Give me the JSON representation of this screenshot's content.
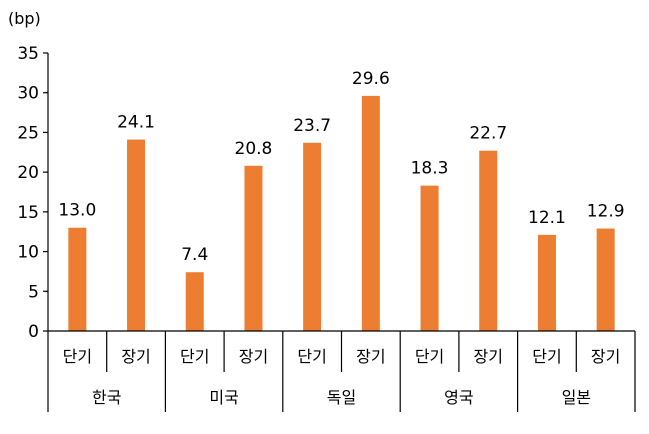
{
  "chart_data": {
    "type": "bar",
    "unit_label": "(bp)",
    "ylim": [
      0,
      35
    ],
    "yticks": [
      0,
      5,
      10,
      15,
      20,
      25,
      30,
      35
    ],
    "grid": false,
    "bar_color": "#ED7D31",
    "groups": [
      {
        "name": "한국",
        "categories": [
          "단기",
          "장기"
        ],
        "values": [
          13.0,
          24.1
        ],
        "labels": [
          "13.0",
          "24.1"
        ]
      },
      {
        "name": "미국",
        "categories": [
          "단기",
          "장기"
        ],
        "values": [
          7.4,
          20.8
        ],
        "labels": [
          "7.4",
          "20.8"
        ]
      },
      {
        "name": "독일",
        "categories": [
          "단기",
          "장기"
        ],
        "values": [
          23.7,
          29.6
        ],
        "labels": [
          "23.7",
          "29.6"
        ]
      },
      {
        "name": "영국",
        "categories": [
          "단기",
          "장기"
        ],
        "values": [
          18.3,
          22.7
        ],
        "labels": [
          "18.3",
          "22.7"
        ]
      },
      {
        "name": "일본",
        "categories": [
          "단기",
          "장기"
        ],
        "values": [
          12.1,
          12.9
        ],
        "labels": [
          "12.1",
          "12.9"
        ]
      }
    ]
  }
}
